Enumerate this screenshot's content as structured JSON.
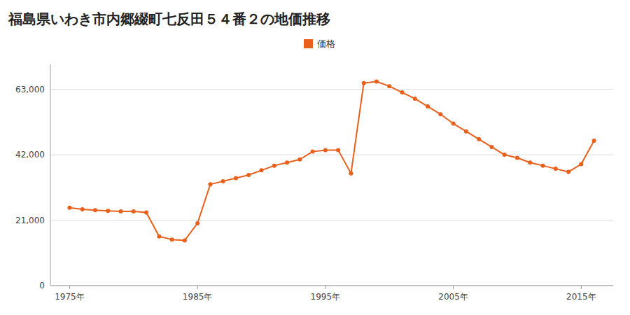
{
  "chart_data": {
    "type": "line",
    "title": "福島県いわき市内郷綴町七反田５４番２の地価推移",
    "x": [
      1975,
      1976,
      1977,
      1978,
      1979,
      1980,
      1981,
      1982,
      1983,
      1984,
      1985,
      1986,
      1987,
      1988,
      1989,
      1990,
      1991,
      1992,
      1993,
      1994,
      1995,
      1996,
      1997,
      1998,
      1999,
      2000,
      2001,
      2002,
      2003,
      2004,
      2005,
      2006,
      2007,
      2008,
      2009,
      2010,
      2011,
      2012,
      2013,
      2014,
      2015,
      2016
    ],
    "series": [
      {
        "name": "価格",
        "color": "#e8601c",
        "marker": "circle",
        "values": [
          25000,
          24500,
          24200,
          24000,
          23800,
          23800,
          23500,
          15800,
          14800,
          14500,
          20000,
          32500,
          33500,
          34500,
          35500,
          37000,
          38500,
          39500,
          40500,
          43000,
          43500,
          43500,
          36000,
          65000,
          65500,
          64000,
          62000,
          60000,
          57500,
          55000,
          52000,
          49500,
          47000,
          44500,
          42000,
          41000,
          39500,
          38500,
          37500,
          36500,
          39000,
          46500
        ]
      }
    ],
    "xlim": [
      1973.5,
      2017.5
    ],
    "ylim": [
      0,
      71000
    ],
    "xticks": [
      {
        "value": 1975,
        "label": "1975年"
      },
      {
        "value": 1985,
        "label": "1985年"
      },
      {
        "value": 1995,
        "label": "1995年"
      },
      {
        "value": 2005,
        "label": "2005年"
      },
      {
        "value": 2015,
        "label": "2015年"
      }
    ],
    "yticks": [
      0,
      {
        "value": 21000,
        "label": "21,000"
      },
      {
        "value": 42000,
        "label": "42,000"
      },
      {
        "value": 63000,
        "label": "63,000"
      }
    ],
    "grid": true,
    "legend": "top"
  }
}
